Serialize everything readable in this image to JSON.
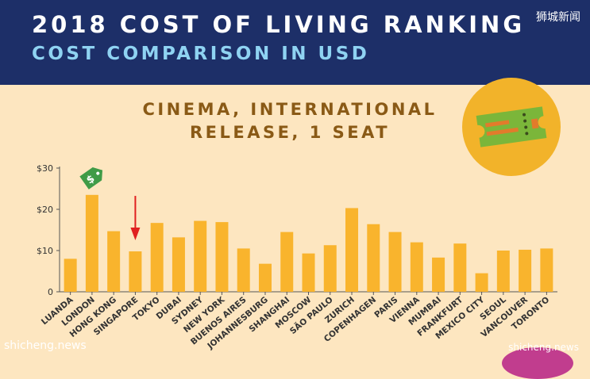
{
  "header": {
    "title": "2018 COST OF LIVING RANKING",
    "subtitle": "COST COMPARISON IN USD",
    "watermark": "狮城新闻"
  },
  "chart_title_line1": "CINEMA, INTERNATIONAL",
  "chart_title_line2": "RELEASE, 1 SEAT",
  "watermark_bottom_left": "shicheng.news",
  "watermark_bottom_right": "shicheng.news",
  "icons": {
    "ticket": "ticket-icon",
    "dollar_tag": "dollar-tag-icon",
    "arrow": "red-arrow-icon"
  },
  "colors": {
    "header_bg": "#1d2f68",
    "subtitle": "#8fd3f2",
    "background": "#fde6c0",
    "bar": "#f9b42d",
    "title_text": "#8a5a16",
    "ticket_circle": "#f2b32a",
    "ticket_green": "#7bb63a",
    "tag_green": "#3f9b47",
    "arrow_red": "#e02020"
  },
  "chart_data": {
    "type": "bar",
    "title": "CINEMA, INTERNATIONAL RELEASE, 1 SEAT",
    "xlabel": "",
    "ylabel": "",
    "ylim": [
      0,
      30
    ],
    "yticks": [
      0,
      10,
      20,
      30
    ],
    "ytick_labels": [
      "0",
      "$10",
      "$20",
      "$30"
    ],
    "grid": false,
    "highlight": "SINGAPORE",
    "categories": [
      "LUANDA",
      "LONDON",
      "HONG KONG",
      "SINGAPORE",
      "TOKYO",
      "DUBAI",
      "SYDNEY",
      "NEW YORK",
      "BUENOS AIRES",
      "JOHANNESBURG",
      "SHANGHAI",
      "MOSCOW",
      "SÃO PAULO",
      "ZURICH",
      "COPENHAGEN",
      "PARIS",
      "VIENNA",
      "MUMBAI",
      "FRANKFURT",
      "MEXICO CITY",
      "SEOUL",
      "VANCOUVER",
      "TORONTO"
    ],
    "values": [
      8.0,
      23.5,
      14.7,
      9.8,
      16.7,
      13.2,
      17.2,
      16.9,
      10.5,
      6.8,
      14.5,
      9.3,
      11.3,
      20.3,
      16.4,
      14.5,
      12.0,
      8.3,
      11.7,
      4.5,
      10.0,
      10.2,
      10.5
    ]
  }
}
